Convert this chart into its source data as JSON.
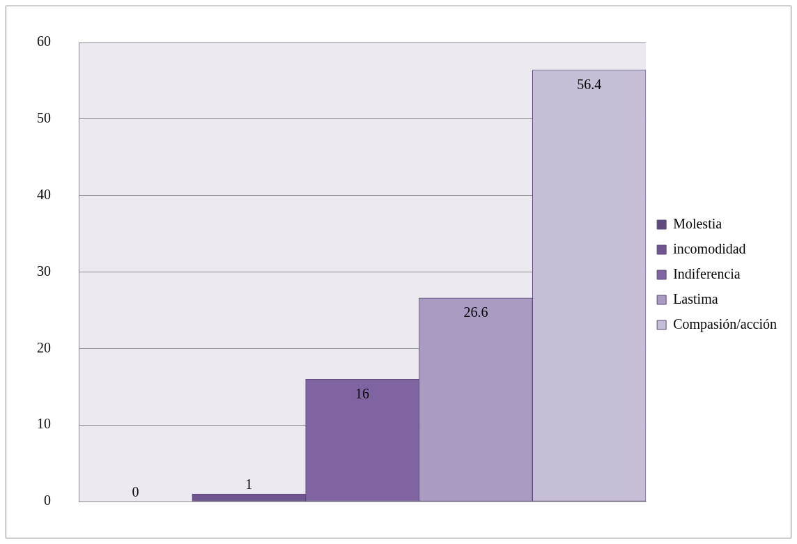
{
  "chart_data": {
    "type": "bar",
    "categories": [
      null,
      null,
      null,
      null,
      null
    ],
    "series": [
      {
        "name": "Molestia",
        "color": "#5f4a7f",
        "values": [
          0,
          null,
          null,
          null,
          null
        ]
      },
      {
        "name": "incomodidad",
        "color": "#6e5590",
        "values": [
          null,
          1,
          null,
          null,
          null
        ]
      },
      {
        "name": "Indiferencia",
        "color": "#8064a2",
        "values": [
          null,
          null,
          16,
          null,
          null
        ]
      },
      {
        "name": "Lastima",
        "color": "#a99bc2",
        "values": [
          null,
          null,
          null,
          26.6,
          null
        ]
      },
      {
        "name": "Compasión/acción",
        "color": "#c7bfd8",
        "values": [
          null,
          null,
          null,
          null,
          56.4
        ]
      }
    ],
    "ylim": [
      0,
      60
    ],
    "yticks": [
      0,
      10,
      20,
      30,
      40,
      50,
      60
    ],
    "grid": "y",
    "legend": "right",
    "data_labels": true
  }
}
